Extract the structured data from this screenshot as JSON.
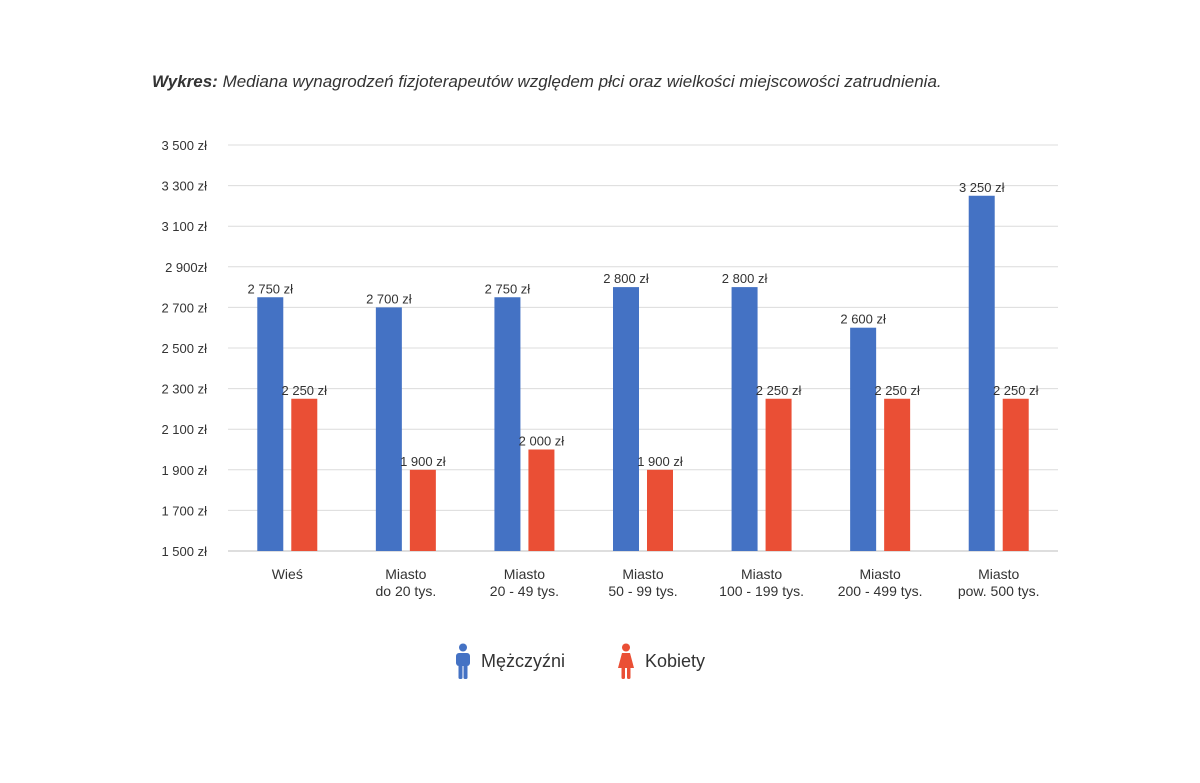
{
  "caption": {
    "lead": "Wykres:",
    "text": " Mediana wynagrodzeń fizjoterapeutów względem płci oraz wielkości miejscowości zatrudnienia."
  },
  "legend": {
    "men": "Mężczyźni",
    "women": "Kobiety"
  },
  "chart_data": {
    "type": "bar",
    "title": "Wykres: Mediana wynagrodzeń fizjoterapeutów względem płci oraz wielkości miejscowości zatrudnienia.",
    "xlabel": "",
    "ylabel": "",
    "ylim": [
      1500,
      3500
    ],
    "grid": true,
    "legend_position": "bottom",
    "y_ticks": [
      {
        "value": 1500,
        "label": "1 500 zł"
      },
      {
        "value": 1700,
        "label": "1 700 zł"
      },
      {
        "value": 1900,
        "label": "1 900 zł"
      },
      {
        "value": 2100,
        "label": "2 100 zł"
      },
      {
        "value": 2300,
        "label": "2 300 zł"
      },
      {
        "value": 2500,
        "label": "2 500 zł"
      },
      {
        "value": 2700,
        "label": "2 700 zł"
      },
      {
        "value": 2900,
        "label": "2 900zł"
      },
      {
        "value": 3100,
        "label": "3 100 zł"
      },
      {
        "value": 3300,
        "label": "3 300 zł"
      },
      {
        "value": 3500,
        "label": "3 500 zł"
      }
    ],
    "categories": [
      [
        "Wieś"
      ],
      [
        "Miasto",
        "do 20 tys."
      ],
      [
        "Miasto",
        "20 - 49 tys."
      ],
      [
        "Miasto",
        "50 - 99 tys."
      ],
      [
        "Miasto",
        "100 - 199 tys."
      ],
      [
        "Miasto",
        "200 - 499 tys."
      ],
      [
        "Miasto",
        "pow. 500 tys."
      ]
    ],
    "series": [
      {
        "name": "Mężczyźni",
        "color": "#4472c4",
        "values": [
          2750,
          2700,
          2750,
          2800,
          2800,
          2600,
          3250
        ],
        "labels": [
          "2 750 zł",
          "2 700 zł",
          "2 750 zł",
          "2 800 zł",
          "2 800 zł",
          "2 600 zł",
          "3 250 zł"
        ]
      },
      {
        "name": "Kobiety",
        "color": "#ea4f35",
        "values": [
          2250,
          1900,
          2000,
          1900,
          2250,
          2250,
          2250
        ],
        "labels": [
          "2 250 zł",
          "1 900 zł",
          "2 000 zł",
          "1 900 zł",
          "2 250 zł",
          "2 250 zł",
          "2 250 zł"
        ]
      }
    ]
  }
}
